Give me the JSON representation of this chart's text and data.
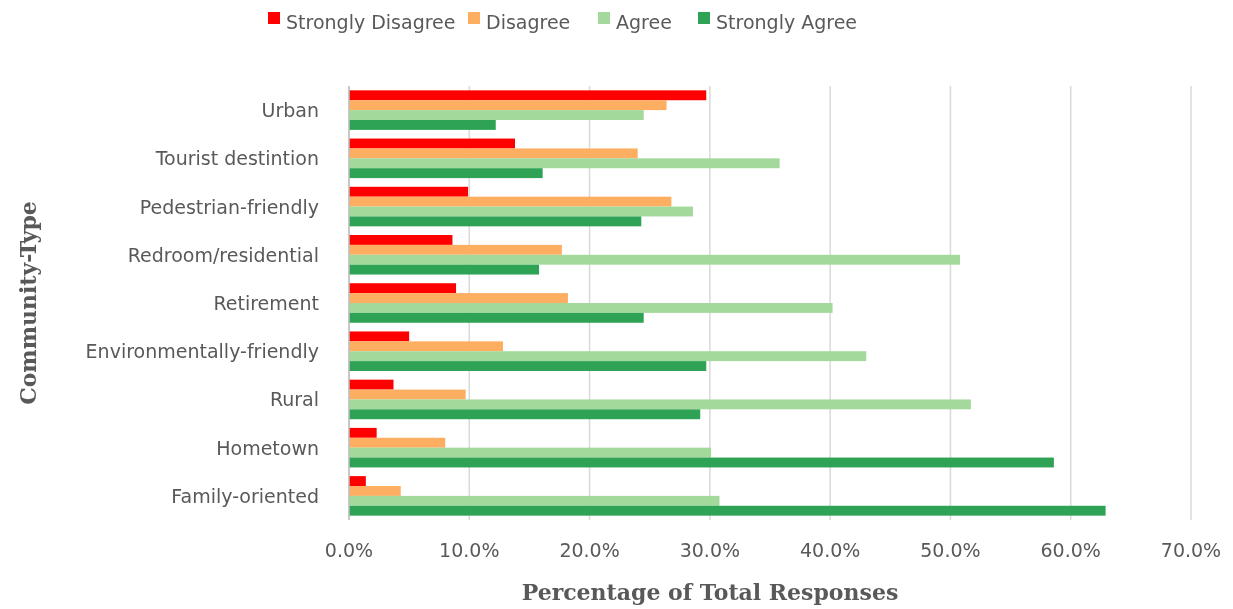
{
  "chart_data": {
    "type": "bar",
    "orientation": "horizontal",
    "xlabel": "Percentage of Total Responses",
    "ylabel": "Community-Type",
    "categories": [
      "Urban",
      "Tourist destintion",
      "Pedestrian-friendly",
      "Redroom/residential",
      "Retirement",
      "Environmentally-friendly",
      "Rural",
      "Hometown",
      "Family-oriented"
    ],
    "series": [
      {
        "name": "Strongly Disagree",
        "color": "#ff0000",
        "values": [
          29.7,
          13.8,
          9.9,
          8.6,
          8.9,
          5.0,
          3.7,
          2.3,
          1.4
        ]
      },
      {
        "name": "Disagree",
        "color": "#fdae61",
        "values": [
          26.4,
          24.0,
          26.8,
          17.7,
          18.2,
          12.8,
          9.7,
          8.0,
          4.3
        ]
      },
      {
        "name": "Agree",
        "color": "#a3d99b",
        "values": [
          24.5,
          35.8,
          28.6,
          50.8,
          40.2,
          43.0,
          51.7,
          30.1,
          30.8
        ]
      },
      {
        "name": "Strongly Agree",
        "color": "#2ea355",
        "values": [
          12.2,
          16.1,
          24.3,
          15.8,
          24.5,
          29.7,
          29.2,
          58.6,
          62.9
        ]
      }
    ],
    "xlim": [
      0,
      70
    ],
    "xticks": [
      {
        "value": 0,
        "label": "0.0%"
      },
      {
        "value": 10,
        "label": "10.0%"
      },
      {
        "value": 20,
        "label": "20.0%"
      },
      {
        "value": 30,
        "label": "30.0%"
      },
      {
        "value": 40,
        "label": "40.0%"
      },
      {
        "value": 50,
        "label": "50.0%"
      },
      {
        "value": 60,
        "label": "60.0%"
      },
      {
        "value": 70,
        "label": "70.0%"
      }
    ],
    "grid": "x",
    "legend": "top"
  }
}
